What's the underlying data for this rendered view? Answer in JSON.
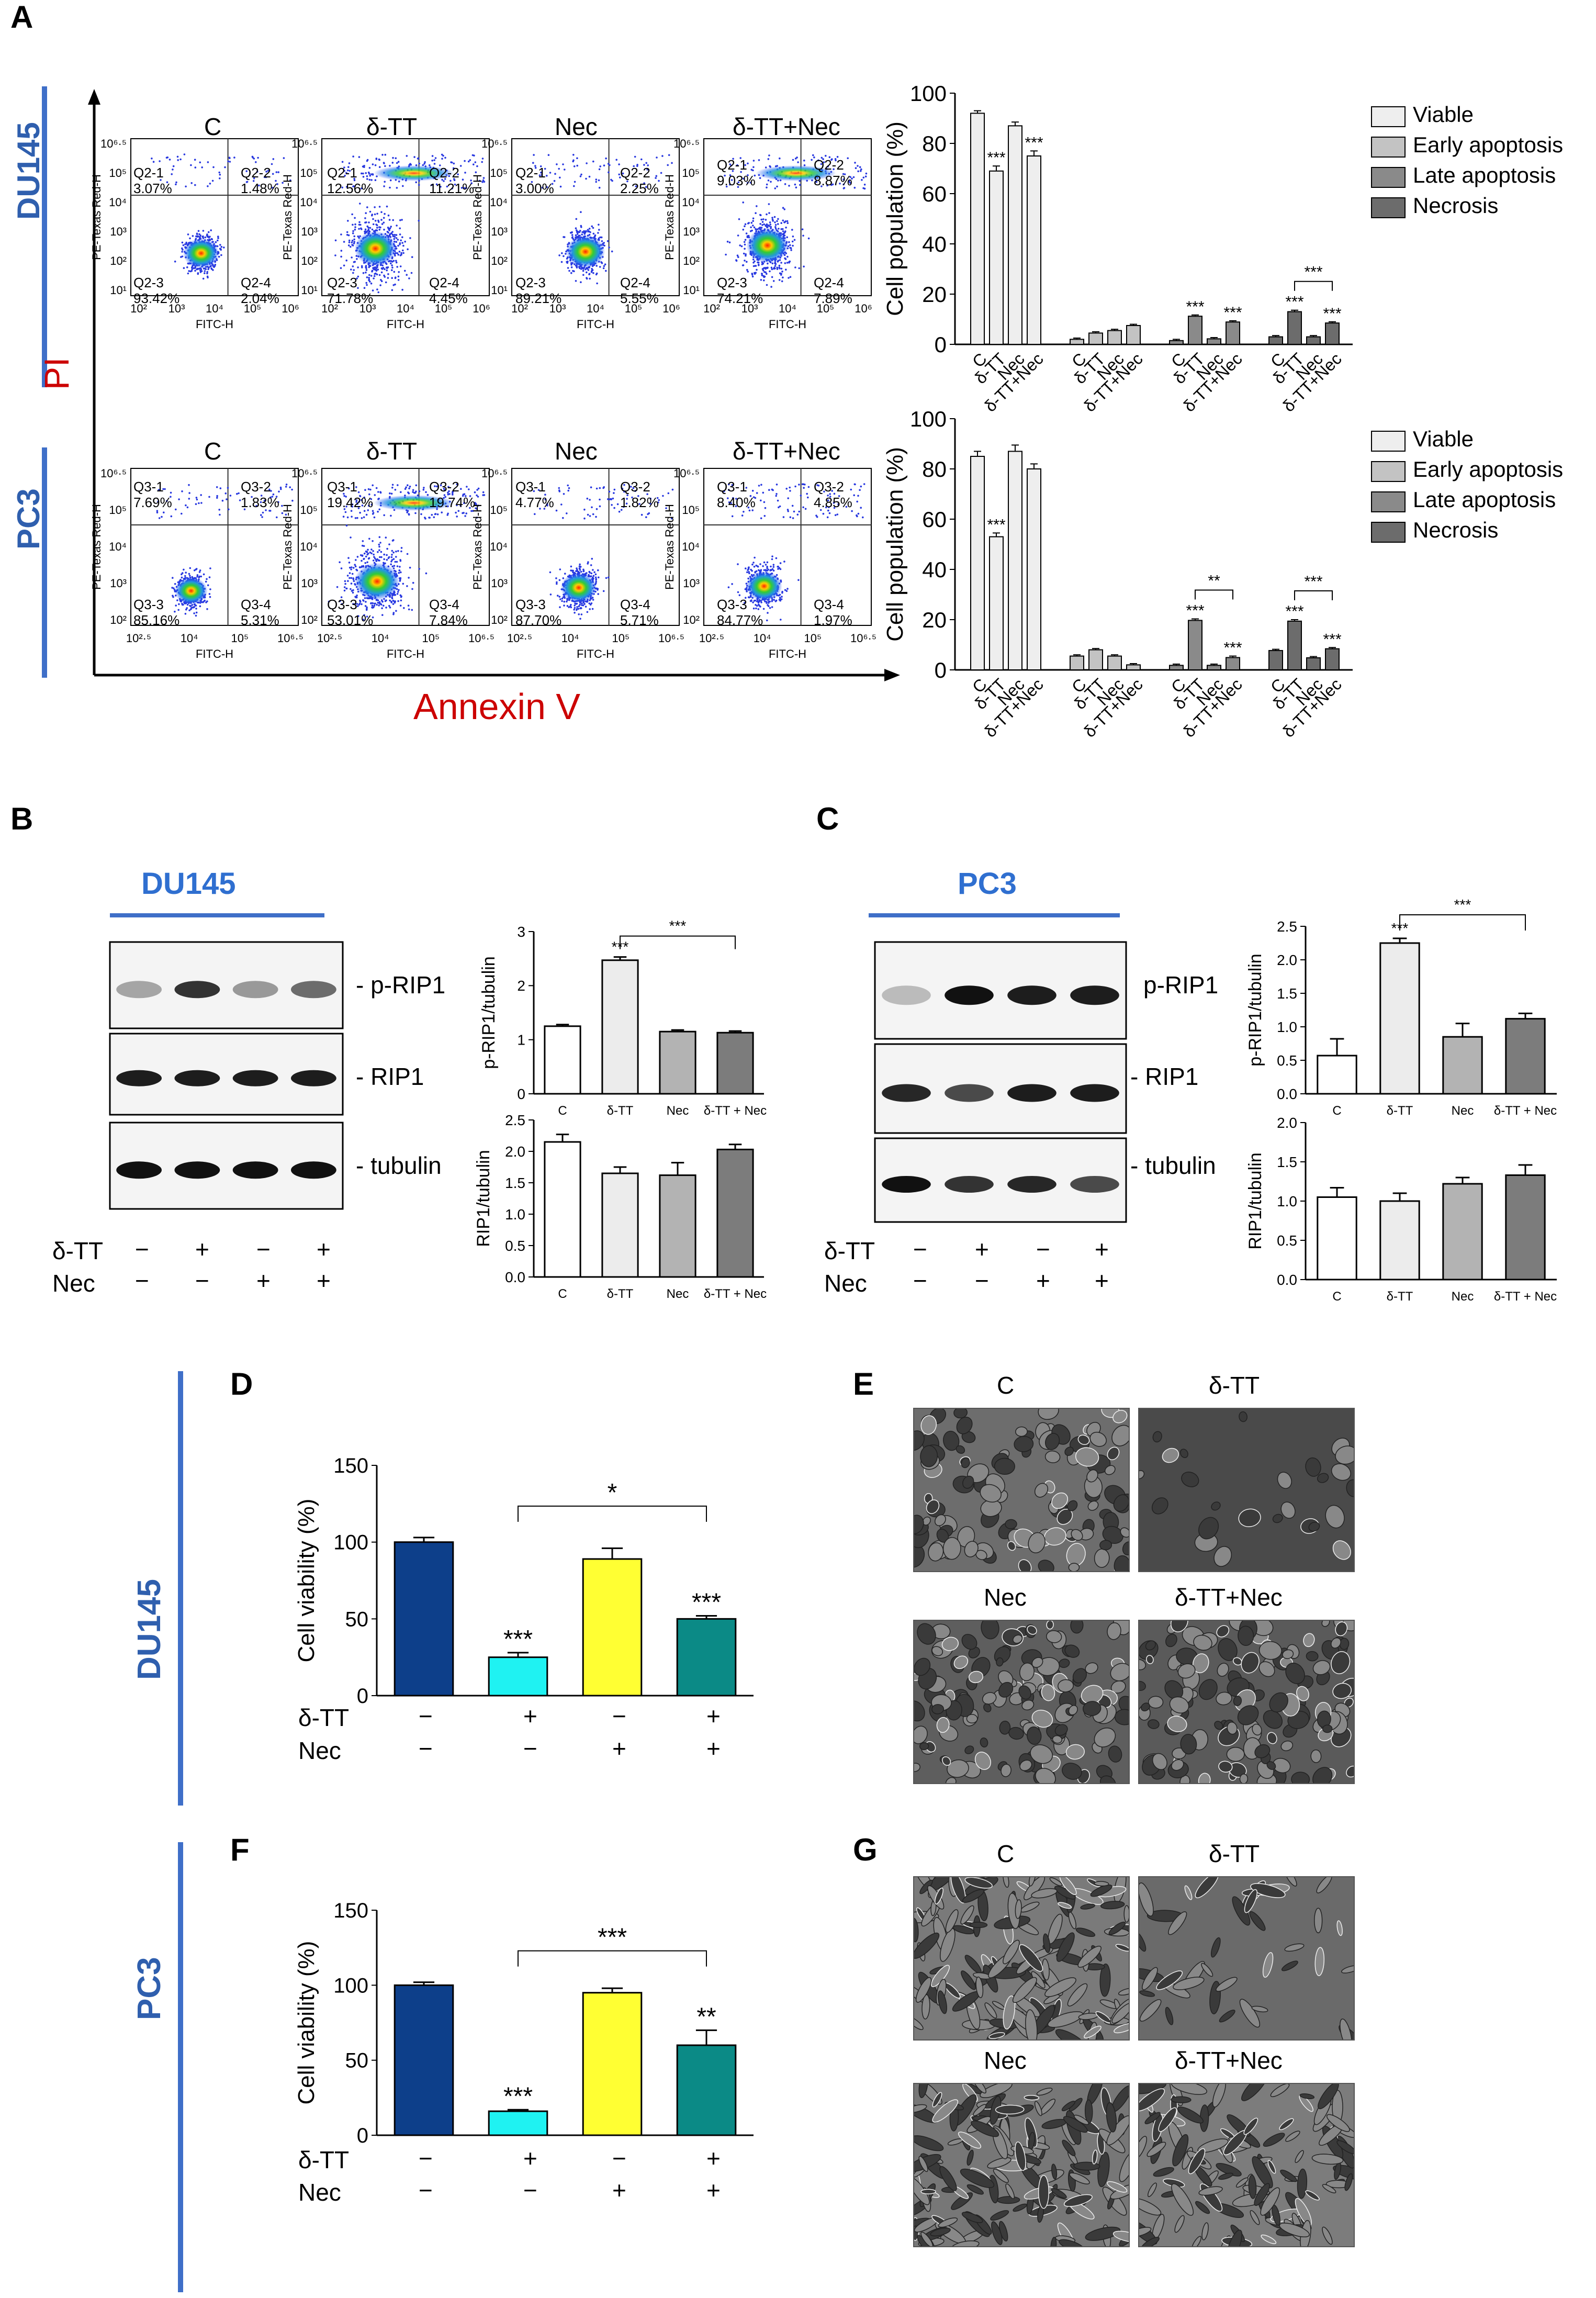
{
  "panel_letters": [
    "A",
    "B",
    "C",
    "D",
    "E",
    "F",
    "G"
  ],
  "panelA": {
    "row_labels": [
      "DU145",
      "PC3"
    ],
    "y_axis_label": "PI",
    "x_axis_label": "Annexin V",
    "conditions": [
      "C",
      "δ-TT",
      "Nec",
      "δ-TT+Nec"
    ],
    "flow_axes": {
      "x_label": "FITC-H",
      "y_label": "PE-Texas Red-H",
      "du_x_ticks": [
        "10²",
        "10³",
        "10⁴",
        "10⁵",
        "10⁶"
      ],
      "du_y_ticks": [
        "10¹",
        "10²",
        "10³",
        "10⁴",
        "10⁵",
        "10⁶·⁵"
      ],
      "pc_x_ticks": [
        "10²·⁵",
        "10⁴",
        "10⁵",
        "10⁶·⁵"
      ],
      "pc_y_ticks": [
        "10²",
        "10³",
        "10⁴",
        "10⁵",
        "10⁶·⁵"
      ]
    },
    "quadrants_du145": [
      {
        "q1": "Q2-1",
        "v1": "3.07%",
        "q2": "Q2-2",
        "v2": "1.48%",
        "q3": "Q2-3",
        "v3": "93.42%",
        "q4": "Q2-4",
        "v4": "2.04%"
      },
      {
        "q1": "Q2-1",
        "v1": "12.56%",
        "q2": "Q2-2",
        "v2": "11.21%",
        "q3": "Q2-3",
        "v3": "71.78%",
        "q4": "Q2-4",
        "v4": "4.45%"
      },
      {
        "q1": "Q2-1",
        "v1": "3.00%",
        "q2": "Q2-2",
        "v2": "2.25%",
        "q3": "Q2-3",
        "v3": "89.21%",
        "q4": "Q2-4",
        "v4": "5.55%"
      },
      {
        "q1": "Q2-1",
        "v1": "9.03%",
        "q2": "Q2-2",
        "v2": "8.87%",
        "q3": "Q2-3",
        "v3": "74.21%",
        "q4": "Q2-4",
        "v4": "7.89%"
      }
    ],
    "quadrants_pc3": [
      {
        "q1": "Q3-1",
        "v1": "7.69%",
        "q2": "Q3-2",
        "v2": "1.83%",
        "q3": "Q3-3",
        "v3": "85.16%",
        "q4": "Q3-4",
        "v4": "5.31%"
      },
      {
        "q1": "Q3-1",
        "v1": "19.42%",
        "q2": "Q3-2",
        "v2": "19.74%",
        "q3": "Q3-3",
        "v3": "53.01%",
        "q4": "Q3-4",
        "v4": "7.84%"
      },
      {
        "q1": "Q3-1",
        "v1": "4.77%",
        "q2": "Q3-2",
        "v2": "1.82%",
        "q3": "Q3-3",
        "v3": "87.70%",
        "q4": "Q3-4",
        "v4": "5.71%"
      },
      {
        "q1": "Q3-1",
        "v1": "8.40%",
        "q2": "Q3-2",
        "v2": "4.85%",
        "q3": "Q3-3",
        "v3": "84.77%",
        "q4": "Q3-4",
        "v4": "1.97%"
      }
    ],
    "legend": [
      {
        "label": "Viable",
        "color": "#eeeeee"
      },
      {
        "label": "Early apoptosis",
        "color": "#c3c3c3"
      },
      {
        "label": "Late apoptosis",
        "color": "#8a8a8a"
      },
      {
        "label": "Necrosis",
        "color": "#6c6c6c"
      }
    ]
  },
  "panelB": {
    "title": "DU145",
    "blot_labels": [
      "- p-RIP1",
      "- RIP1",
      "- tubulin"
    ],
    "treat": {
      "dtt_label": "δ-TT",
      "nec_label": "Nec",
      "dtt": [
        "−",
        "+",
        "−",
        "+"
      ],
      "nec": [
        "−",
        "−",
        "+",
        "+"
      ]
    }
  },
  "panelC": {
    "title": "PC3",
    "blot_labels": [
      "p-RIP1",
      "- RIP1",
      "- tubulin"
    ],
    "treat": {
      "dtt_label": "δ-TT",
      "nec_label": "Nec",
      "dtt": [
        "−",
        "+",
        "−",
        "+"
      ],
      "nec": [
        "−",
        "−",
        "+",
        "+"
      ]
    }
  },
  "panelD": {
    "side_label": "DU145",
    "dtt_label": "δ-TT",
    "nec_label": "Nec",
    "dtt": [
      "−",
      "+",
      "−",
      "+"
    ],
    "nec": [
      "−",
      "−",
      "+",
      "+"
    ]
  },
  "panelF": {
    "side_label": "PC3",
    "dtt_label": "δ-TT",
    "nec_label": "Nec",
    "dtt": [
      "−",
      "+",
      "−",
      "+"
    ],
    "nec": [
      "−",
      "−",
      "+",
      "+"
    ]
  },
  "panelE": {
    "labels": [
      "C",
      "δ-TT",
      "Nec",
      "δ-TT+Nec"
    ]
  },
  "panelG": {
    "labels": [
      "C",
      "δ-TT",
      "Nec",
      "δ-TT+Nec"
    ]
  },
  "chart_data": [
    {
      "id": "A_DU145",
      "type": "bar",
      "title": "",
      "ylabel": "Cell population (%)",
      "ylim": [
        0,
        100
      ],
      "yticks": [
        0,
        20,
        40,
        60,
        80,
        100
      ],
      "groups": [
        "Viable",
        "Early apoptosis",
        "Late apoptosis",
        "Necrosis"
      ],
      "categories": [
        "C",
        "δ-TT",
        "Nec",
        "δ-TT+Nec"
      ],
      "values": [
        [
          92,
          69,
          87,
          75
        ],
        [
          2,
          4.5,
          5.5,
          7.5
        ],
        [
          1.5,
          11.2,
          2.2,
          8.9
        ],
        [
          3,
          13,
          3,
          8.5
        ]
      ],
      "errors": [
        [
          1,
          2,
          1.5,
          2
        ],
        [
          0.5,
          0.5,
          0.5,
          0.5
        ],
        [
          0.5,
          0.5,
          0.5,
          0.5
        ],
        [
          0.5,
          0.6,
          0.5,
          0.5
        ]
      ],
      "stars": [
        [
          "",
          "***",
          "",
          "***"
        ],
        [
          "",
          "",
          "",
          ""
        ],
        [
          "",
          "***",
          "",
          "***"
        ],
        [
          "",
          "***",
          "",
          "***"
        ]
      ],
      "brackets": [
        {
          "group": 3,
          "from": 1,
          "to": 3,
          "label": "***"
        }
      ]
    },
    {
      "id": "A_PC3",
      "type": "bar",
      "title": "",
      "ylabel": "Cell population (%)",
      "ylim": [
        0,
        100
      ],
      "yticks": [
        0,
        20,
        40,
        60,
        80,
        100
      ],
      "groups": [
        "Viable",
        "Early apoptosis",
        "Late apoptosis",
        "Necrosis"
      ],
      "categories": [
        "C",
        "δ-TT",
        "Nec",
        "δ-TT+Nec"
      ],
      "values": [
        [
          85,
          53,
          87,
          80
        ],
        [
          5.5,
          8,
          5.5,
          2
        ],
        [
          1.8,
          19.7,
          1.8,
          4.9
        ],
        [
          7.7,
          19.4,
          4.8,
          8.4
        ]
      ],
      "errors": [
        [
          2,
          1.5,
          2.5,
          2
        ],
        [
          0.5,
          0.5,
          0.5,
          0.5
        ],
        [
          0.5,
          0.6,
          0.5,
          0.6
        ],
        [
          0.5,
          0.6,
          0.5,
          0.5
        ]
      ],
      "stars": [
        [
          "",
          "***",
          "",
          ""
        ],
        [
          "",
          "",
          "",
          ""
        ],
        [
          "",
          "***",
          "",
          "***"
        ],
        [
          "",
          "***",
          "",
          "***"
        ]
      ],
      "brackets": [
        {
          "group": 2,
          "from": 1,
          "to": 3,
          "label": "**"
        },
        {
          "group": 3,
          "from": 1,
          "to": 3,
          "label": "***"
        }
      ]
    },
    {
      "id": "B_pRIP1",
      "type": "bar",
      "ylabel": "p-RIP1/tubulin",
      "ylim": [
        0,
        3
      ],
      "yticks": [
        0,
        1,
        2,
        3
      ],
      "categories": [
        "C",
        "δ-TT",
        "Nec",
        "δ-TT + Nec"
      ],
      "values": [
        1.25,
        2.47,
        1.15,
        1.13
      ],
      "errors": [
        0.03,
        0.06,
        0.03,
        0.03
      ],
      "colors": [
        "#ffffff",
        "#ececec",
        "#b3b3b3",
        "#7c7c7c"
      ],
      "stars": [
        "",
        "***",
        "",
        ""
      ],
      "bracket": {
        "from": 1,
        "to": 3,
        "label": "***"
      }
    },
    {
      "id": "B_RIP1",
      "type": "bar",
      "ylabel": "RIP1/tubulin",
      "ylim": [
        0,
        2.5
      ],
      "yticks": [
        0.0,
        0.5,
        1.0,
        1.5,
        2.0,
        2.5
      ],
      "categories": [
        "C",
        "δ-TT",
        "Nec",
        "δ-TT + Nec"
      ],
      "values": [
        2.15,
        1.65,
        1.62,
        2.03
      ],
      "errors": [
        0.12,
        0.1,
        0.2,
        0.08
      ],
      "colors": [
        "#ffffff",
        "#ececec",
        "#b3b3b3",
        "#7c7c7c"
      ],
      "stars": [
        "",
        "",
        "",
        ""
      ]
    },
    {
      "id": "C_pRIP1",
      "type": "bar",
      "ylabel": "p-RIP1/tubulin",
      "ylim": [
        0,
        2.5
      ],
      "yticks": [
        0.0,
        0.5,
        1.0,
        1.5,
        2.0,
        2.5
      ],
      "categories": [
        "C",
        "δ-TT",
        "Nec",
        "δ-TT + Nec"
      ],
      "values": [
        0.57,
        2.25,
        0.85,
        1.12
      ],
      "errors": [
        0.25,
        0.07,
        0.2,
        0.08
      ],
      "colors": [
        "#ffffff",
        "#ececec",
        "#b3b3b3",
        "#7c7c7c"
      ],
      "stars": [
        "",
        "***",
        "",
        ""
      ],
      "bracket": {
        "from": 1,
        "to": 3,
        "label": "***"
      }
    },
    {
      "id": "C_RIP1",
      "type": "bar",
      "ylabel": "RIP1/tubulin",
      "ylim": [
        0,
        2.0
      ],
      "yticks": [
        0.0,
        0.5,
        1.0,
        1.5,
        2.0
      ],
      "categories": [
        "C",
        "δ-TT",
        "Nec",
        "δ-TT + Nec"
      ],
      "values": [
        1.05,
        1.0,
        1.22,
        1.33
      ],
      "errors": [
        0.12,
        0.1,
        0.08,
        0.13
      ],
      "colors": [
        "#ffffff",
        "#ececec",
        "#b3b3b3",
        "#7c7c7c"
      ],
      "stars": [
        "",
        "",
        "",
        ""
      ]
    },
    {
      "id": "D",
      "type": "bar",
      "ylabel": "Cell viability  (%)",
      "ylim": [
        0,
        150
      ],
      "yticks": [
        0,
        50,
        100,
        150
      ],
      "categories": [
        "C",
        "δ-TT",
        "Nec",
        "δ-TT+Nec"
      ],
      "values": [
        100,
        25,
        89,
        50
      ],
      "errors": [
        3,
        3,
        7,
        2
      ],
      "colors": [
        "#0d3f8a",
        "#1ff2f2",
        "#ffff33",
        "#0b8a86"
      ],
      "stars": [
        "",
        "***",
        "",
        "***"
      ],
      "bracket": {
        "from": 1,
        "to": 3,
        "label": "*"
      }
    },
    {
      "id": "F",
      "type": "bar",
      "ylabel": "Cell viability  (%)",
      "ylim": [
        0,
        150
      ],
      "yticks": [
        0,
        50,
        100,
        150
      ],
      "categories": [
        "C",
        "δ-TT",
        "Nec",
        "δ-TT+Nec"
      ],
      "values": [
        100,
        16,
        95,
        60
      ],
      "errors": [
        2,
        1,
        3,
        10
      ],
      "colors": [
        "#0d3f8a",
        "#1ff2f2",
        "#ffff33",
        "#0b8a86"
      ],
      "stars": [
        "",
        "***",
        "",
        "**"
      ],
      "bracket": {
        "from": 1,
        "to": 3,
        "label": "***"
      }
    }
  ]
}
